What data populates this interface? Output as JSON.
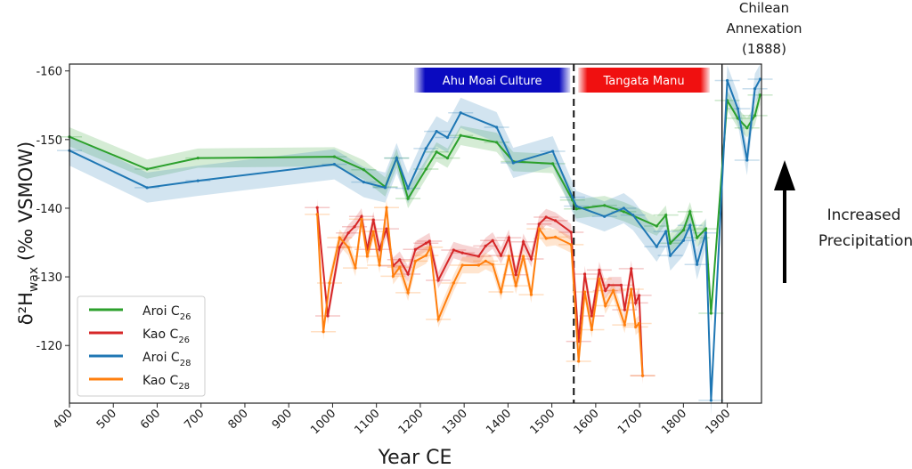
{
  "chart_data": {
    "type": "line",
    "xlabel": "Year CE",
    "ylabel": "δ²H",
    "ylabel_sub": "wax",
    "ylabel_unit": " (‰ VSMOW)",
    "xlim": [
      400,
      1978
    ],
    "ylim": [
      -111.6,
      -161
    ],
    "y_inverted": true,
    "xticks": [
      400,
      500,
      600,
      700,
      800,
      900,
      1000,
      1100,
      1200,
      1300,
      1400,
      1500,
      1600,
      1700,
      1800,
      1900
    ],
    "yticks": [
      -160,
      -150,
      -140,
      -130,
      -120
    ],
    "grid": false,
    "legend_position": "bottom-left",
    "series": [
      {
        "name": "Aroi C",
        "sub": "26",
        "color": "#2ca02c",
        "band": 1.4,
        "x": [
          400,
          577,
          693,
          1004,
          1071,
          1120,
          1146,
          1172,
          1213,
          1237,
          1262,
          1292,
          1374,
          1412,
          1502,
          1547,
          1556,
          1620,
          1664,
          1739,
          1760,
          1770,
          1800,
          1815,
          1831,
          1851,
          1863,
          1900,
          1924,
          1945,
          1963,
          1975
        ],
        "y": [
          -150.4,
          -145.7,
          -147.3,
          -147.5,
          -145.6,
          -143.1,
          -147.3,
          -141.4,
          -145.7,
          -148.2,
          -147.3,
          -150.6,
          -149.6,
          -146.8,
          -146.5,
          -141.2,
          -139.9,
          -140.4,
          -139.5,
          -137.4,
          -139,
          -134.9,
          -136.8,
          -139.5,
          -135.7,
          -137,
          -124.7,
          -155.7,
          -153.1,
          -151.7,
          -153.5,
          -156.5
        ]
      },
      {
        "name": "Kao C",
        "sub": "26",
        "color": "#d62728",
        "band": 1.2,
        "x": [
          965,
          989,
          1016,
          1036,
          1050,
          1066,
          1079,
          1093,
          1107,
          1123,
          1138,
          1153,
          1172,
          1189,
          1213,
          1221,
          1241,
          1276,
          1296,
          1333,
          1349,
          1365,
          1384,
          1402,
          1418,
          1435,
          1453,
          1471,
          1487,
          1508,
          1544,
          1561,
          1575,
          1591,
          1608,
          1622,
          1630,
          1658,
          1666,
          1681,
          1691,
          1699,
          1707
        ],
        "y": [
          -140.1,
          -124.3,
          -134.3,
          -136.4,
          -137.3,
          -138.8,
          -134,
          -138.3,
          -134,
          -137,
          -131.6,
          -132.5,
          -130.4,
          -134,
          -134.9,
          -135.2,
          -129.5,
          -133.9,
          -133.5,
          -133,
          -134.5,
          -135.3,
          -133.1,
          -135.7,
          -130.3,
          -135.1,
          -132.6,
          -137.7,
          -138.7,
          -138.2,
          -136.5,
          -120.6,
          -130.4,
          -124.3,
          -131,
          -128,
          -128.8,
          -128.8,
          -125.2,
          -131.2,
          -126.2,
          -127.3,
          -115.6
        ]
      },
      {
        "name": "Aroi C",
        "sub": "28",
        "color": "#1f77b4",
        "band": 2.2,
        "x": [
          400,
          577,
          693,
          1004,
          1071,
          1120,
          1146,
          1172,
          1213,
          1237,
          1262,
          1292,
          1374,
          1412,
          1502,
          1547,
          1556,
          1620,
          1664,
          1685,
          1739,
          1760,
          1770,
          1800,
          1815,
          1831,
          1851,
          1863,
          1900,
          1924,
          1945,
          1963,
          1975
        ],
        "y": [
          -148.4,
          -143,
          -144,
          -146.4,
          -143.8,
          -143,
          -147.3,
          -142.9,
          -148.7,
          -151.2,
          -150.3,
          -153.9,
          -151.8,
          -146.6,
          -148.3,
          -141.6,
          -140.3,
          -138.8,
          -140,
          -139,
          -134.4,
          -136.6,
          -133.1,
          -135.3,
          -137.5,
          -131.8,
          -136.4,
          -112,
          -158.6,
          -154.5,
          -147,
          -157.4,
          -158.8
        ]
      },
      {
        "name": "Kao C",
        "sub": "28",
        "color": "#ff7f0e",
        "band": 1.2,
        "x": [
          965,
          979,
          993,
          1016,
          1036,
          1052,
          1066,
          1079,
          1093,
          1107,
          1123,
          1138,
          1153,
          1172,
          1189,
          1213,
          1223,
          1241,
          1276,
          1296,
          1333,
          1349,
          1365,
          1384,
          1402,
          1418,
          1435,
          1453,
          1471,
          1487,
          1508,
          1544,
          1561,
          1575,
          1591,
          1608,
          1622,
          1640,
          1666,
          1681,
          1691,
          1699,
          1707
        ],
        "y": [
          -139.1,
          -122,
          -129.1,
          -135.7,
          -134.3,
          -131.3,
          -138.4,
          -133,
          -136.6,
          -131.7,
          -140.1,
          -130.1,
          -131.4,
          -127.7,
          -132.3,
          -133.1,
          -134.3,
          -123.8,
          -129.1,
          -131.7,
          -131.7,
          -132.3,
          -131.8,
          -127.8,
          -133,
          -128.7,
          -133,
          -127.4,
          -137,
          -135.6,
          -135.8,
          -134.7,
          -117.7,
          -127.8,
          -122.3,
          -129.7,
          -125.8,
          -128,
          -123,
          -128.2,
          -122.7,
          -123.2,
          -115.6
        ]
      }
    ],
    "periods": [
      {
        "label": "Ahu Moai Culture",
        "start": 1186,
        "end": 1542,
        "color": "#0a0ac0"
      },
      {
        "label": "Tangata Manu",
        "start": 1560,
        "end": 1860,
        "color": "#f01010"
      }
    ],
    "vlines": [
      {
        "x": 1550,
        "style": "dashed"
      },
      {
        "x": 1888,
        "style": "solid"
      }
    ],
    "annotations": {
      "annexation": [
        "Chilean",
        "Annexation",
        "(1888)"
      ],
      "precipitation": [
        "Increased",
        "Precipitation"
      ]
    }
  }
}
